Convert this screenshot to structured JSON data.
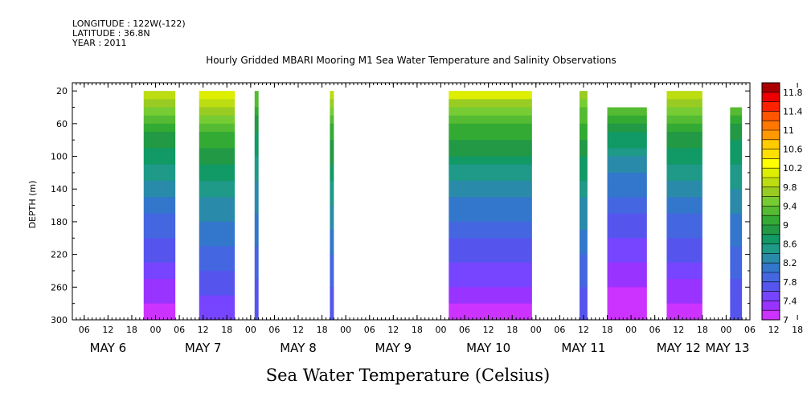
{
  "header": {
    "longitude": "LONGITUDE : 122W(-122)",
    "latitude": "LATITUDE : 36.8N",
    "year": "YEAR : 2011"
  },
  "chart_data": {
    "type": "heatmap",
    "title": "Hourly Gridded MBARI Mooring M1 Sea Water Temperature and Salinity Observations",
    "subtitle": "Sea Water Temperature (Celsius)",
    "ylabel": "DEPTH (m)",
    "yticks": [
      20,
      60,
      100,
      140,
      180,
      220,
      260,
      300
    ],
    "ylim": [
      300,
      10
    ],
    "x_start": "2011-05-06 03:00",
    "x_end": "2011-05-13 06:00",
    "xtick_hours": [
      "06",
      "12",
      "18",
      "00",
      "06",
      "12",
      "18",
      "00",
      "06",
      "12",
      "18",
      "00",
      "06",
      "12",
      "18",
      "00",
      "06",
      "12",
      "18",
      "00",
      "06",
      "12",
      "18",
      "00",
      "06",
      "12",
      "18",
      "00",
      "06",
      "12",
      "18",
      "00"
    ],
    "day_labels": [
      "MAY  6",
      "MAY  7",
      "MAY  8",
      "MAY  9",
      "MAY 10",
      "MAY 11",
      "MAY 12",
      "MAY 13"
    ],
    "colorbar": {
      "levels": [
        7.0,
        7.2,
        7.4,
        7.6,
        7.8,
        8.0,
        8.2,
        8.4,
        8.6,
        8.8,
        9.0,
        9.2,
        9.4,
        9.6,
        9.8,
        10.0,
        10.2,
        10.4,
        10.6,
        10.8,
        11.0,
        11.2,
        11.4,
        11.6,
        11.8,
        12.0
      ],
      "tick_labels": [
        "7",
        "7.4",
        "7.8",
        "8.2",
        "8.6",
        "9",
        "9.4",
        "9.8",
        "10.2",
        "10.6",
        "11",
        "11.4",
        "11.8"
      ],
      "colors": [
        "#cc33ff",
        "#9933ff",
        "#7744ff",
        "#5555ee",
        "#4466e0",
        "#3377cc",
        "#2a8aaa",
        "#1f9988",
        "#119966",
        "#229944",
        "#33aa33",
        "#55bb33",
        "#77cc33",
        "#99cc22",
        "#bbdd11",
        "#ddee00",
        "#ffff00",
        "#ffe000",
        "#ffcc00",
        "#ff9900",
        "#ff7700",
        "#ff5500",
        "#ff2200",
        "#ee0000",
        "#aa0000"
      ]
    },
    "segments": [
      {
        "start": "2011-05-06 21:00",
        "end": "2011-05-07 05:00",
        "top_depth": 20,
        "surface_temp": 10.3,
        "bottom_temp": 7.1
      },
      {
        "start": "2011-05-07 11:00",
        "end": "2011-05-07 20:00",
        "top_depth": 20,
        "surface_temp": 10.4,
        "bottom_temp": 7.4
      },
      {
        "start": "2011-05-08 01:00",
        "end": "2011-05-08 02:00",
        "top_depth": 20,
        "surface_temp": 9.6,
        "bottom_temp": 7.6
      },
      {
        "start": "2011-05-08 20:00",
        "end": "2011-05-08 21:00",
        "top_depth": 20,
        "surface_temp": 10.1,
        "bottom_temp": 7.6
      },
      {
        "start": "2011-05-10 02:00",
        "end": "2011-05-10 23:00",
        "top_depth": 20,
        "surface_temp": 10.4,
        "bottom_temp": 7.1
      },
      {
        "start": "2011-05-11 11:00",
        "end": "2011-05-11 13:00",
        "top_depth": 20,
        "surface_temp": 10.0,
        "bottom_temp": 7.6
      },
      {
        "start": "2011-05-11 18:00",
        "end": "2011-05-12 04:00",
        "top_depth": 40,
        "surface_temp": 9.6,
        "bottom_temp": 7.0
      },
      {
        "start": "2011-05-12 09:00",
        "end": "2011-05-12 18:00",
        "top_depth": 20,
        "surface_temp": 10.3,
        "bottom_temp": 7.1
      },
      {
        "start": "2011-05-13 01:00",
        "end": "2011-05-13 04:00",
        "top_depth": 40,
        "surface_temp": 9.5,
        "bottom_temp": 7.6
      }
    ]
  }
}
